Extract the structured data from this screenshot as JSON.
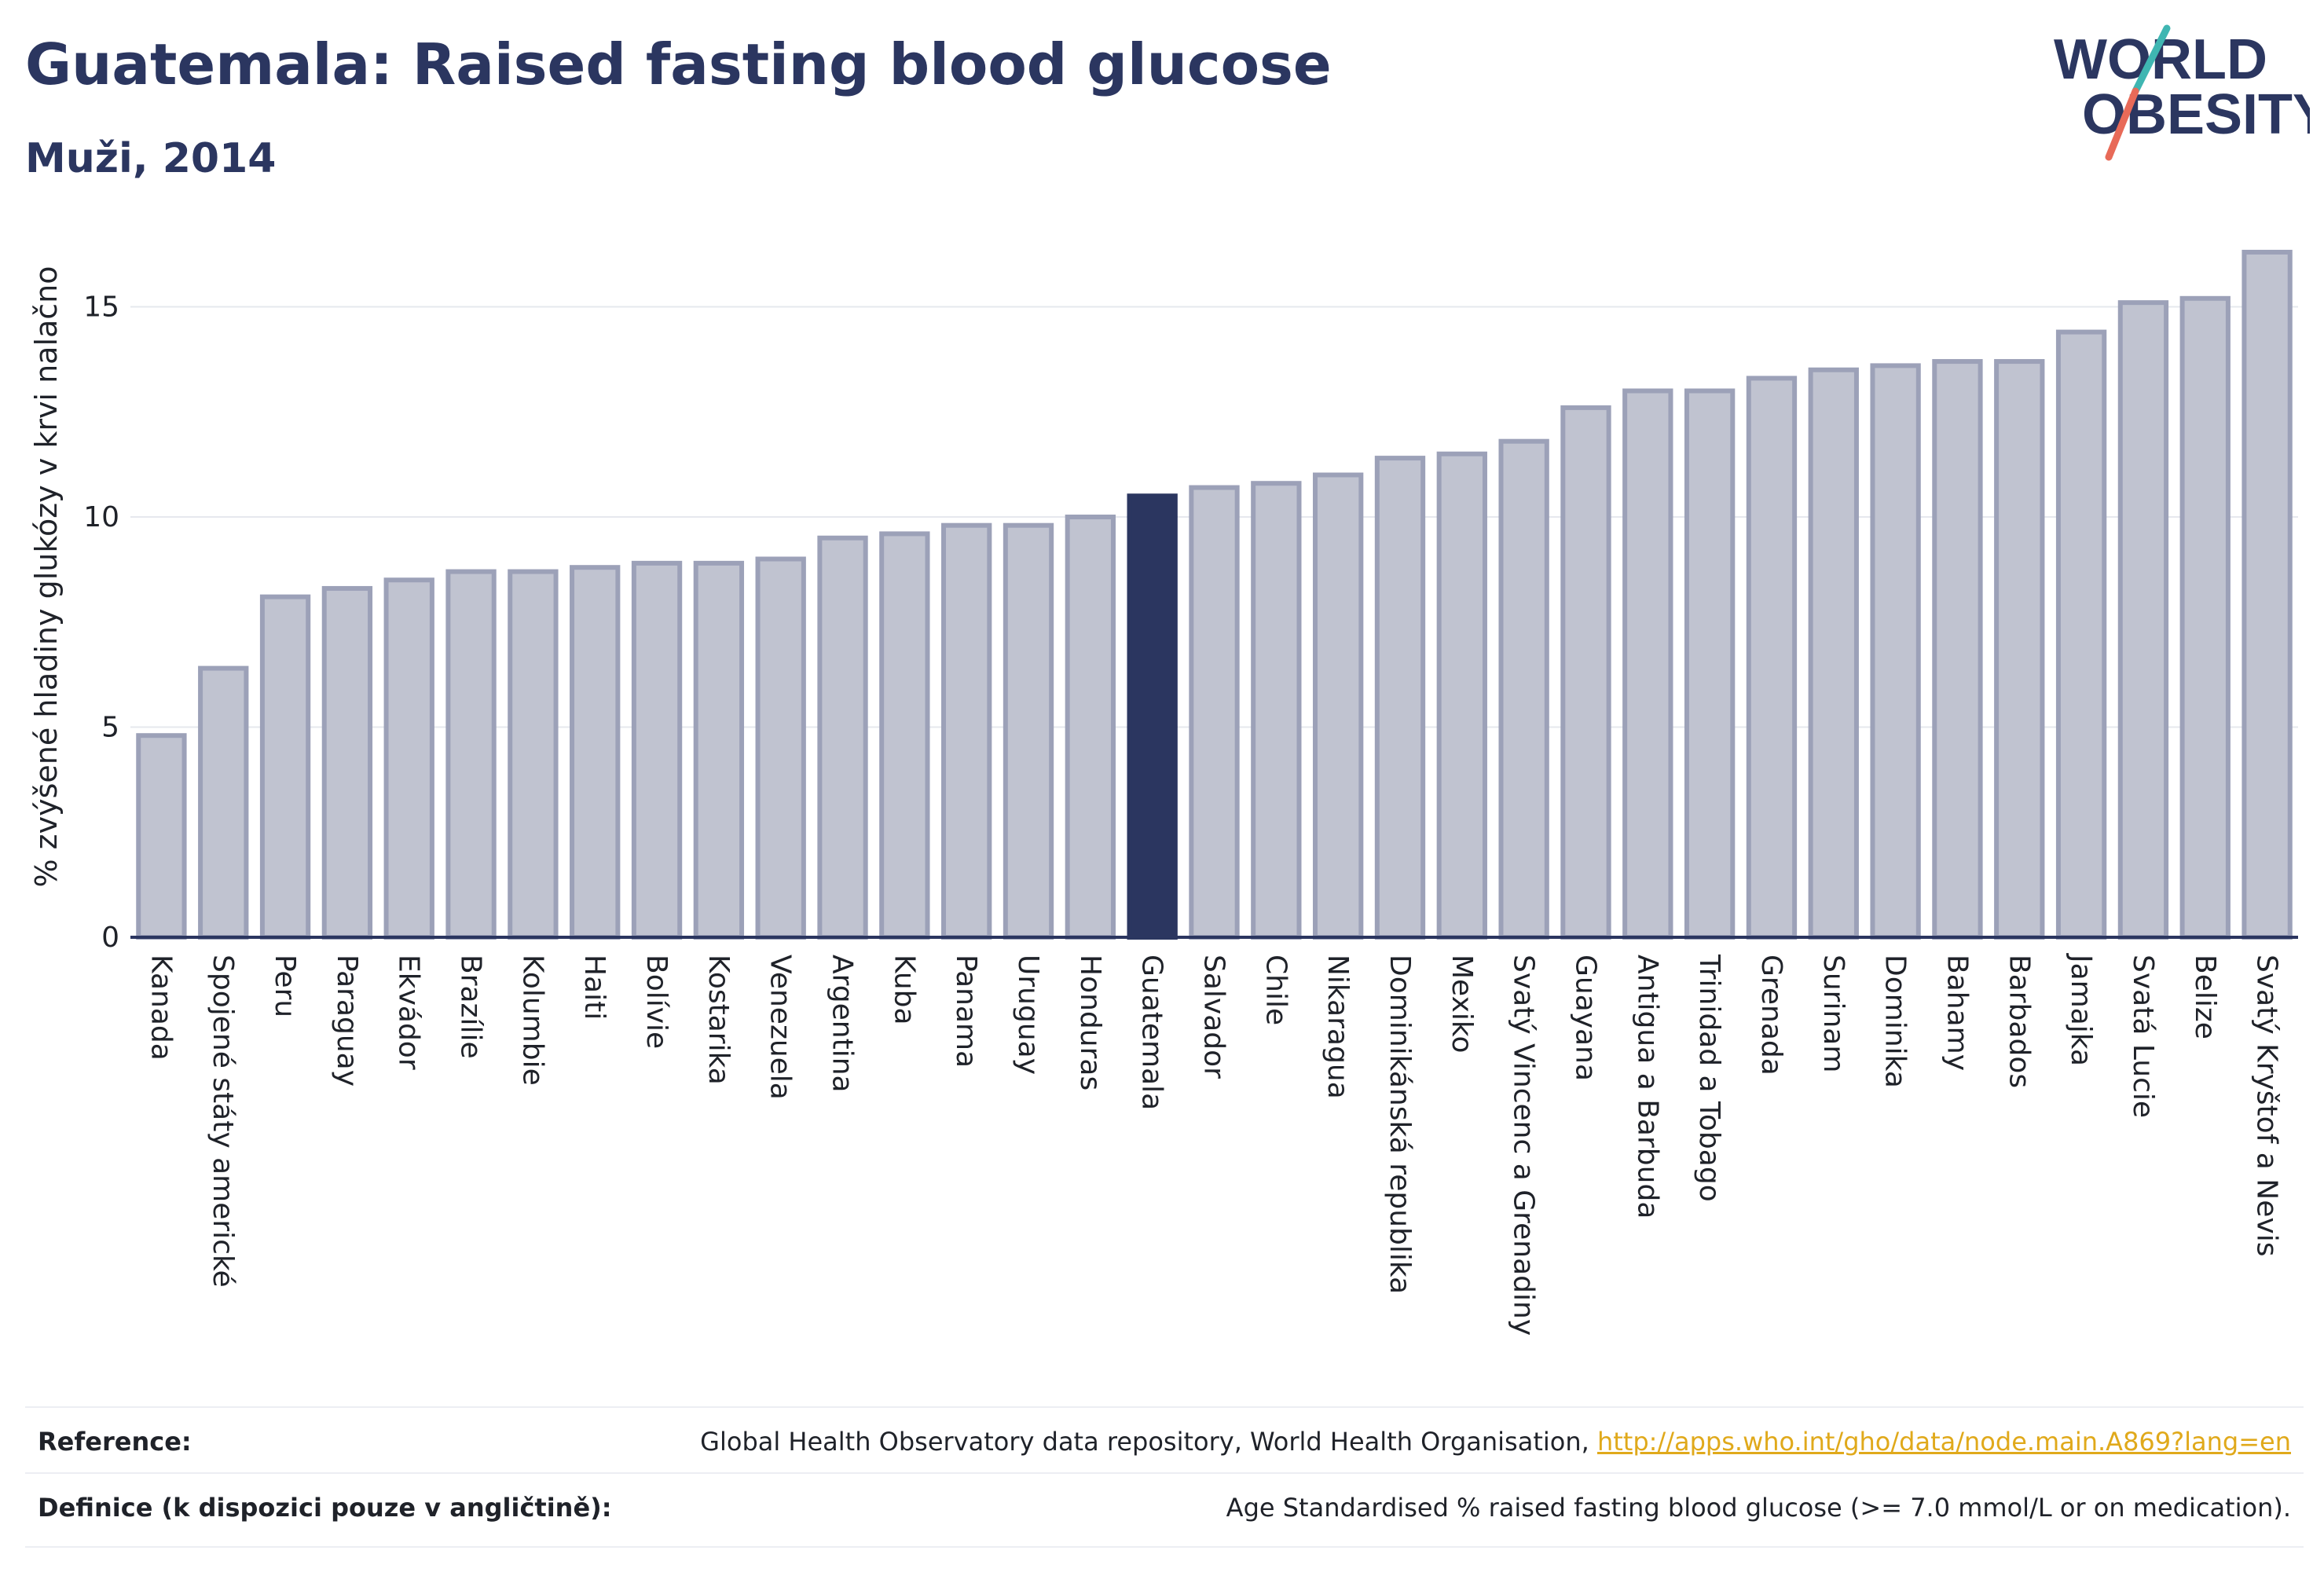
{
  "header": {
    "title": "Guatemala: Raised fasting blood glucose",
    "subtitle": "Muži, 2014"
  },
  "logo": {
    "line1": "WORLD",
    "line2": "OBESITY"
  },
  "chart_data": {
    "type": "bar",
    "title": "Guatemala: Raised fasting blood glucose",
    "subtitle": "Muži, 2014",
    "xlabel": "",
    "ylabel": "% zvýšené hladiny glukózy v krvi nalačno",
    "ylim": [
      0,
      16.5
    ],
    "yticks": [
      0,
      5,
      10,
      15
    ],
    "grid": true,
    "highlight": "Guatemala",
    "colors": {
      "bar": "#c0c3d0",
      "bar_border": "#9ca1b8",
      "highlight": "#2b3660",
      "axis": "#2b3660",
      "grid": "#e6e8ee"
    },
    "categories": [
      "Kanada",
      "Spojené státy americké",
      "Peru",
      "Paraguay",
      "Ekvádor",
      "Brazílie",
      "Kolumbie",
      "Haiti",
      "Bolívie",
      "Kostarika",
      "Venezuela",
      "Argentina",
      "Kuba",
      "Panama",
      "Uruguay",
      "Honduras",
      "Guatemala",
      "Salvador",
      "Chile",
      "Nikaragua",
      "Dominikánská republika",
      "Mexiko",
      "Svatý Vincenc a Grenadiny",
      "Guayana",
      "Antigua a Barbuda",
      "Trinidad a Tobago",
      "Grenada",
      "Surinam",
      "Dominika",
      "Bahamy",
      "Barbados",
      "Jamajka",
      "Svatá Lucie",
      "Belize",
      "Svatý Kryštof a Nevis"
    ],
    "values": [
      4.8,
      6.4,
      8.1,
      8.3,
      8.5,
      8.7,
      8.7,
      8.8,
      8.9,
      8.9,
      9.0,
      9.5,
      9.6,
      9.8,
      9.8,
      10.0,
      10.5,
      10.7,
      10.8,
      11.0,
      11.4,
      11.5,
      11.8,
      12.6,
      13.0,
      13.0,
      13.3,
      13.5,
      13.6,
      13.7,
      13.7,
      14.4,
      15.1,
      15.2,
      16.3
    ]
  },
  "footer": {
    "reference_label": "Reference:",
    "reference_text": "Global Health Observatory data repository, World Health Organisation, ",
    "reference_link": "http://apps.who.int/gho/data/node.main.A869?lang=en",
    "definition_label": "Definice (k dispozici pouze v angličtině):",
    "definition_text": "Age Standardised % raised fasting blood glucose (>= 7.0 mmol/L or on medication)."
  }
}
